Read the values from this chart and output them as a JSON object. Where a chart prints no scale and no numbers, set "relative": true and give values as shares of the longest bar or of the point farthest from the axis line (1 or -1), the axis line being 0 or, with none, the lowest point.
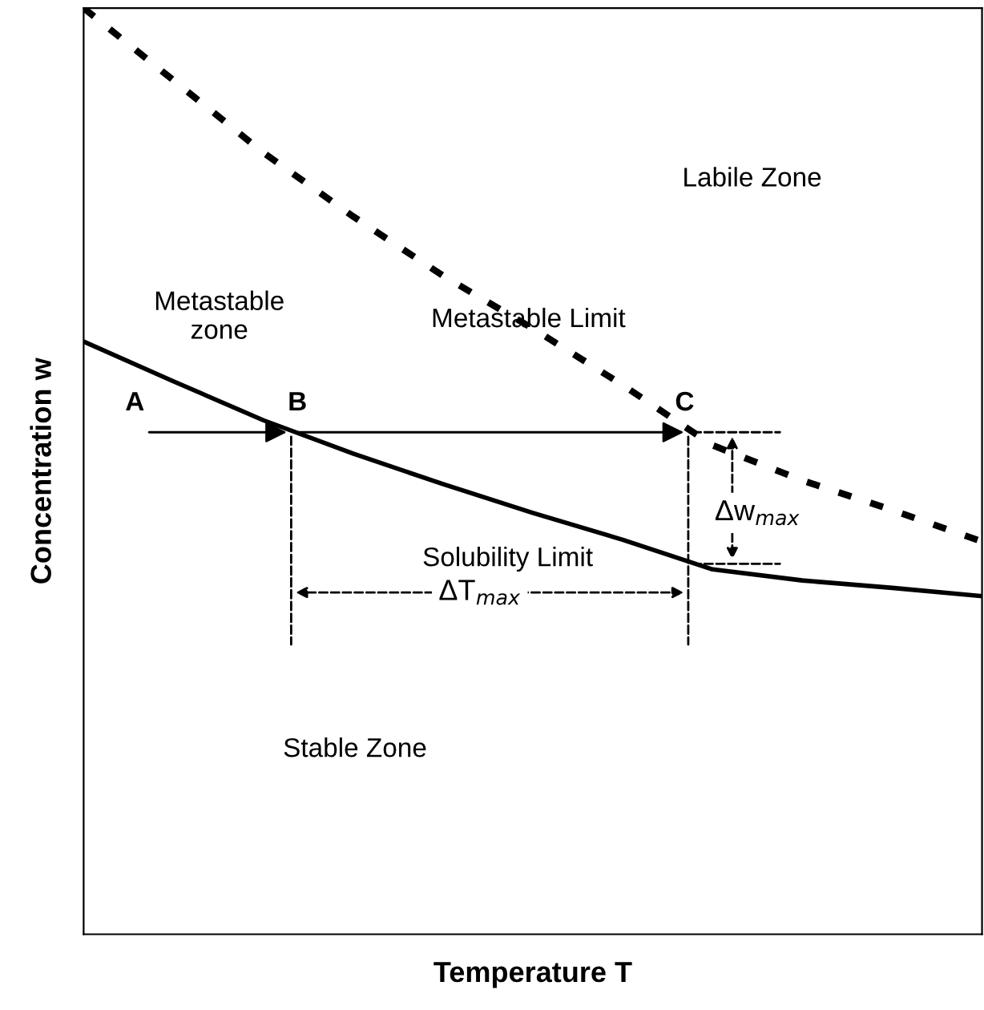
{
  "chart_data": {
    "type": "line",
    "relative": true,
    "xlabel": "Temperature T",
    "ylabel": "Concentration w",
    "categories": [
      null,
      null,
      null,
      null,
      null,
      null,
      null,
      null,
      null,
      null,
      null
    ],
    "series": [
      {
        "name": "Solubility Limit",
        "color": "#000000",
        "line_style": "solid",
        "values": [
          0.64,
          0.597,
          0.555,
          0.519,
          0.486,
          0.455,
          0.426,
          0.394,
          0.382,
          0.374,
          0.365
        ]
      },
      {
        "name": "Metastable Limit",
        "color": "#000000",
        "line_style": "dashed",
        "values": [
          1.0,
          0.922,
          0.844,
          0.775,
          0.711,
          0.654,
          0.593,
          0.528,
          0.49,
          0.458,
          0.424
        ]
      }
    ],
    "annotations": [
      "Labile Zone",
      "Metastable\nzone",
      "Stable Zone",
      "A",
      "B",
      "C",
      "ΔT$_{max}$",
      "Δw$_{max}$"
    ],
    "marker": "none"
  }
}
